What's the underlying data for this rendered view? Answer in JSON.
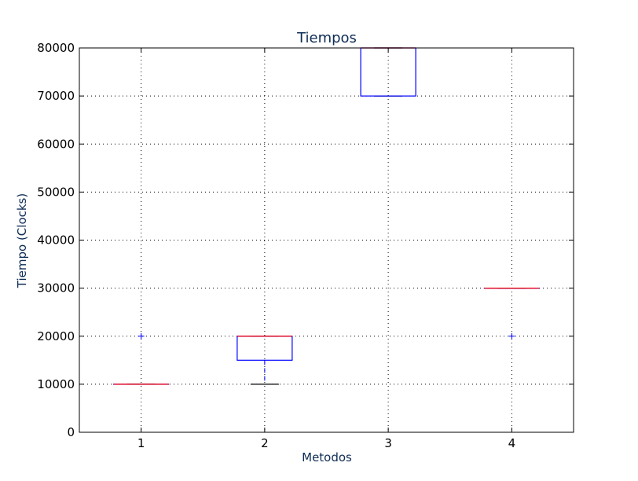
{
  "chart_data": {
    "type": "boxplot",
    "title": "Tiempos",
    "xlabel": "Metodos",
    "ylabel": "Tiempo (Clocks)",
    "ylim": [
      0,
      80000
    ],
    "yticks": [
      0,
      10000,
      20000,
      30000,
      40000,
      50000,
      60000,
      70000,
      80000
    ],
    "grid": true,
    "categories": [
      "1",
      "2",
      "3",
      "4"
    ],
    "boxes": [
      {
        "category": "1",
        "q1": 10000,
        "median": 10000,
        "q3": 10000,
        "whisker_low": 10000,
        "whisker_high": 10000,
        "outliers": [
          20000
        ]
      },
      {
        "category": "2",
        "q1": 15000,
        "median": 20000,
        "q3": 20000,
        "whisker_low": 10000,
        "whisker_high": 20000,
        "outliers": []
      },
      {
        "category": "3",
        "q1": 70000,
        "median": 80000,
        "q3": 80000,
        "whisker_low": 70000,
        "whisker_high": 80000,
        "outliers": []
      },
      {
        "category": "4",
        "q1": 30000,
        "median": 30000,
        "q3": 30000,
        "whisker_low": 30000,
        "whisker_high": 30000,
        "outliers": [
          20000
        ]
      }
    ],
    "colors": {
      "box": "#0000ff",
      "median": "#ff0000",
      "cap": "#000000",
      "grid": "#000000",
      "text": "#0d2c54"
    }
  }
}
